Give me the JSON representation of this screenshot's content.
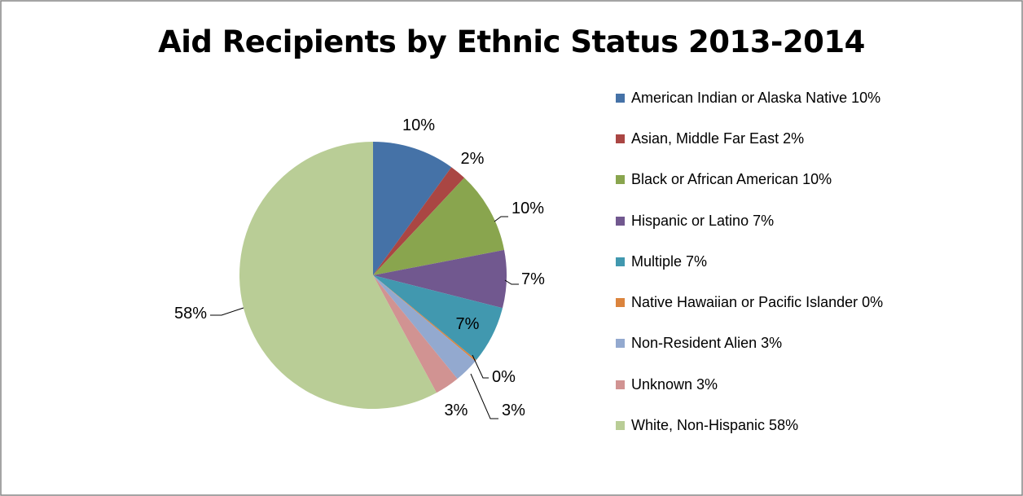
{
  "chart_data": {
    "type": "pie",
    "title": "Aid Recipients by Ethnic Status 2013-2014",
    "legend_position": "right",
    "slices": [
      {
        "label": "American Indian or Alaska Native",
        "value": 10,
        "legend_text": "American Indian or Alaska Native 10%",
        "data_label": "10%",
        "color": "#4572A7"
      },
      {
        "label": "Asian, Middle Far East",
        "value": 2,
        "legend_text": "Asian, Middle Far East 2%",
        "data_label": "2%",
        "color": "#AA4643"
      },
      {
        "label": "Black or African American",
        "value": 10,
        "legend_text": "Black or African American 10%",
        "data_label": "10%",
        "color": "#89A54E"
      },
      {
        "label": "Hispanic or Latino",
        "value": 7,
        "legend_text": "Hispanic or Latino 7%",
        "data_label": "7%",
        "color": "#71588F"
      },
      {
        "label": "Multiple",
        "value": 7,
        "legend_text": "Multiple 7%",
        "data_label": "7%",
        "color": "#4198AF"
      },
      {
        "label": "Native Hawaiian or Pacific Islander",
        "value": 0.2,
        "legend_text": "Native Hawaiian or Pacific Islander 0%",
        "data_label": "0%",
        "color": "#DB843D"
      },
      {
        "label": "Non-Resident Alien",
        "value": 3,
        "legend_text": "Non-Resident Alien 3%",
        "data_label": "3%",
        "color": "#93A9CF"
      },
      {
        "label": "Unknown",
        "value": 3,
        "legend_text": "Unknown 3%",
        "data_label": "3%",
        "color": "#D19392"
      },
      {
        "label": "White, Non-Hispanic",
        "value": 58,
        "legend_text": "White, Non-Hispanic 58%",
        "data_label": "58%",
        "color": "#B9CD96"
      }
    ]
  }
}
